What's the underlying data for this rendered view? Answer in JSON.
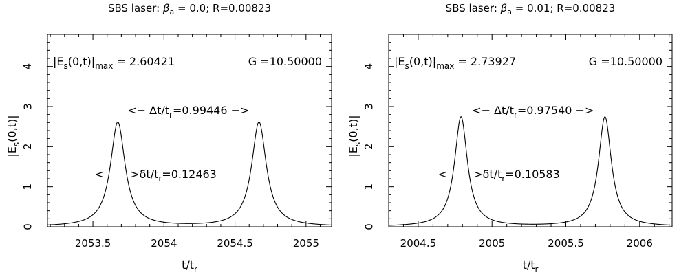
{
  "chart_data": [
    {
      "type": "line",
      "title": "SBS laser: β_a = 0.0; R=0.00823",
      "title_parts": {
        "prefix": "SBS laser: ",
        "beta": "β",
        "beta_sub": "a",
        "suffix": " = 0.0; R=0.00823"
      },
      "xlabel": {
        "main": "t/t",
        "sub": "r"
      },
      "ylabel": {
        "main": "|E",
        "sub": "s",
        "tail": "(0,t)|"
      },
      "xlim": [
        2053.18,
        2055.18
      ],
      "ylim": [
        0,
        4.8
      ],
      "x_ticks": [
        2053.5,
        2054,
        2054.5,
        2055
      ],
      "x_tick_labels": [
        "2053.5",
        "2054",
        "2054.5",
        "2055"
      ],
      "x_minor_step": 0.1,
      "y_ticks": [
        0,
        1,
        2,
        3,
        4
      ],
      "y_tick_labels": [
        "0",
        "1",
        "2",
        "3",
        "4"
      ],
      "y_minor_step": 0.2,
      "grid": false,
      "series": [
        {
          "peaks": [
            2053.675,
            2054.669
          ],
          "peak_value": 2.60421,
          "fwhm": 0.12463
        }
      ],
      "annotations": {
        "max_label": {
          "a": "|E",
          "sub1": "s",
          "b": "(0,t)|",
          "sub2": "max",
          "c": " = 2.60421"
        },
        "gain_label": "G =10.50000",
        "period_label": {
          "a": "<− Δt/t",
          "sub": "r",
          "b": "=0.99446 −>"
        },
        "width_left": "<",
        "width_label": {
          "a": ">δt/t",
          "sub": "r",
          "b": "=0.12463"
        }
      }
    },
    {
      "type": "line",
      "title": "SBS laser: β_a = 0.01; R=0.00823",
      "title_parts": {
        "prefix": "SBS laser: ",
        "beta": "β",
        "beta_sub": "a",
        "suffix": " = 0.01; R=0.00823"
      },
      "xlabel": {
        "main": "t/t",
        "sub": "r"
      },
      "ylabel": {
        "main": "|E",
        "sub": "s",
        "tail": "(0,t)|"
      },
      "xlim": [
        2004.3,
        2006.22
      ],
      "ylim": [
        0,
        4.8
      ],
      "x_ticks": [
        2004.5,
        2005,
        2005.5,
        2006
      ],
      "x_tick_labels": [
        "2004.5",
        "2005",
        "2005.5",
        "2006"
      ],
      "x_minor_step": 0.1,
      "y_ticks": [
        0,
        1,
        2,
        3,
        4
      ],
      "y_tick_labels": [
        "0",
        "1",
        "2",
        "3",
        "4"
      ],
      "y_minor_step": 0.2,
      "grid": false,
      "series": [
        {
          "peaks": [
            2004.79,
            2005.765
          ],
          "peak_value": 2.73927,
          "fwhm": 0.10583
        }
      ],
      "annotations": {
        "max_label": {
          "a": "|E",
          "sub1": "s",
          "b": "(0,t)|",
          "sub2": "max",
          "c": " = 2.73927"
        },
        "gain_label": "G =10.50000",
        "period_label": {
          "a": "<− Δt/t",
          "sub": "r",
          "b": "=0.97540 −>"
        },
        "width_left": "<",
        "width_label": {
          "a": ">δt/t",
          "sub": "r",
          "b": "=0.10583"
        }
      }
    }
  ]
}
